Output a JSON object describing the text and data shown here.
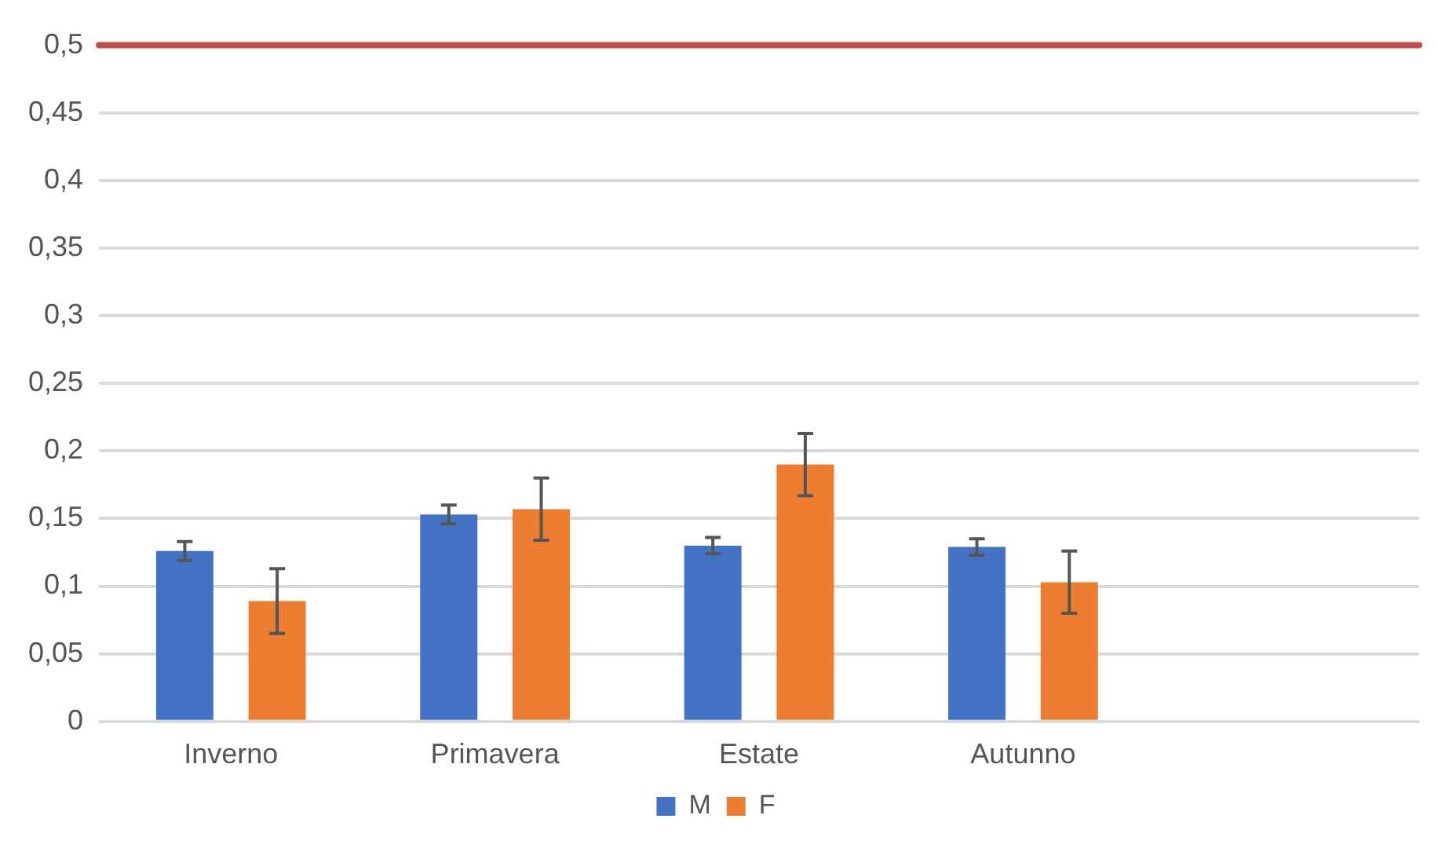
{
  "chart_data": {
    "type": "bar",
    "categories": [
      "Inverno",
      "Primavera",
      "Estate",
      "Autunno",
      null
    ],
    "series": [
      {
        "name": "M",
        "color": "#4472c4",
        "values": [
          0.126,
          0.153,
          0.13,
          0.129,
          null
        ],
        "errors": [
          0.007,
          0.007,
          0.006,
          0.006,
          null
        ]
      },
      {
        "name": "F",
        "color": "#ed7d31",
        "values": [
          0.089,
          0.157,
          0.19,
          0.103,
          null
        ],
        "errors": [
          0.024,
          0.023,
          0.023,
          0.023,
          null
        ]
      }
    ],
    "ylim": [
      0,
      0.5
    ],
    "yticks": [
      {
        "value": 0,
        "label": "0"
      },
      {
        "value": 0.05,
        "label": "0,05"
      },
      {
        "value": 0.1,
        "label": "0,1"
      },
      {
        "value": 0.15,
        "label": "0,15"
      },
      {
        "value": 0.2,
        "label": "0,2"
      },
      {
        "value": 0.25,
        "label": "0,25"
      },
      {
        "value": 0.3,
        "label": "0,3"
      },
      {
        "value": 0.35,
        "label": "0,35"
      },
      {
        "value": 0.4,
        "label": "0,4"
      },
      {
        "value": 0.45,
        "label": "0,45"
      },
      {
        "value": 0.5,
        "label": "0,5"
      }
    ],
    "ref_lines": [
      {
        "axis": "y",
        "value": 0.5,
        "color": "#c0504d"
      }
    ],
    "grid": "y",
    "legend": "bottom"
  }
}
